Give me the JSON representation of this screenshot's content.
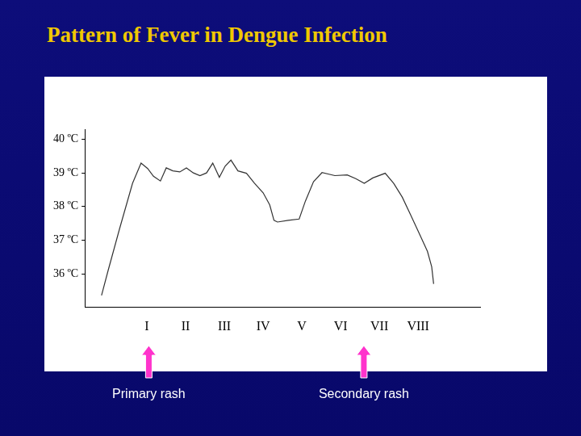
{
  "chart_data": {
    "type": "line",
    "title": "Pattern of Fever in Dengue Infection",
    "x": [
      -0.17,
      0.0,
      0.3,
      0.63,
      0.85,
      1.02,
      1.17,
      1.35,
      1.5,
      1.67,
      1.85,
      2.02,
      2.2,
      2.37,
      2.54,
      2.7,
      2.87,
      3.02,
      3.17,
      3.35,
      3.57,
      3.78,
      4.0,
      4.17,
      4.28,
      4.37,
      4.65,
      4.93,
      5.09,
      5.3,
      5.52,
      5.85,
      6.17,
      6.39,
      6.61,
      6.83,
      7.15,
      7.37,
      7.59,
      7.8,
      8.02,
      8.24,
      8.35,
      8.4
    ],
    "values": [
      35.36,
      36.1,
      37.36,
      38.69,
      39.29,
      39.13,
      38.9,
      38.76,
      39.15,
      39.06,
      39.03,
      39.15,
      39.0,
      38.92,
      39.0,
      39.29,
      38.87,
      39.2,
      39.38,
      39.06,
      38.99,
      38.69,
      38.41,
      38.05,
      37.59,
      37.54,
      37.59,
      37.63,
      38.16,
      38.74,
      39.01,
      38.92,
      38.94,
      38.83,
      38.69,
      38.85,
      38.99,
      38.69,
      38.28,
      37.77,
      37.22,
      36.67,
      36.21,
      35.7
    ],
    "color": "#333333",
    "xlim": [
      -0.6,
      9.6
    ],
    "xticks": [
      {
        "value": 1,
        "label": "I"
      },
      {
        "value": 2,
        "label": "II"
      },
      {
        "value": 3,
        "label": "III"
      },
      {
        "value": 4,
        "label": "IV"
      },
      {
        "value": 5,
        "label": "V"
      },
      {
        "value": 6,
        "label": "VI"
      },
      {
        "value": 7,
        "label": "VII"
      },
      {
        "value": 8,
        "label": "VIII"
      }
    ],
    "ylim": [
      35,
      40.3
    ],
    "yticks": [
      {
        "value": 36,
        "label": "36 ºC"
      },
      {
        "value": 37,
        "label": "37 ºC"
      },
      {
        "value": 38,
        "label": "38 ºC"
      },
      {
        "value": 39,
        "label": "39 ºC"
      },
      {
        "value": 40,
        "label": "40 ºC"
      }
    ],
    "grid": false,
    "annotations": [
      {
        "text": "Primary rash",
        "x": 1.05
      },
      {
        "text": "Secondary rash",
        "x": 6.6
      }
    ]
  }
}
